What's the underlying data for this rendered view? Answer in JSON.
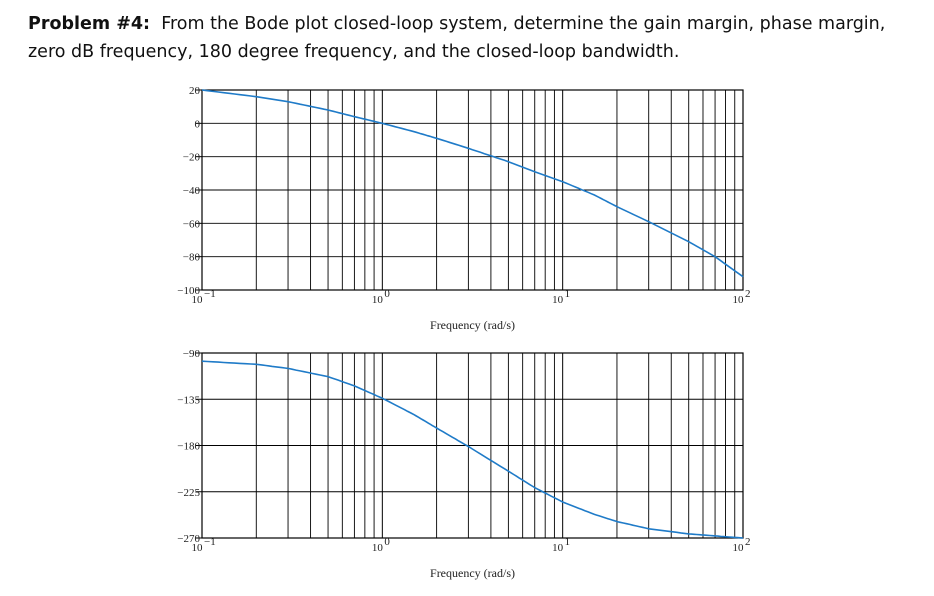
{
  "problem": {
    "label": "Problem #4:",
    "text": "From the Bode plot closed-loop system, determine the gain margin, phase margin, zero dB frequency, 180 degree frequency, and the closed-loop bandwidth."
  },
  "colors": {
    "curve": "#1f7bc8",
    "grid": "#000000"
  },
  "chart_data": [
    {
      "type": "line",
      "xscale": "log",
      "xlim": [
        0.1,
        100
      ],
      "ylim": [
        -100,
        20
      ],
      "yticks": [
        20,
        0,
        -20,
        -40,
        -60,
        -80,
        -100
      ],
      "yticklabels": [
        "20",
        "0",
        "−20",
        "−40",
        "−60",
        "−80",
        "−100"
      ],
      "xticks": [
        0.1,
        1,
        10,
        100
      ],
      "xticklabels": [
        "10",
        "10",
        "10",
        "10"
      ],
      "xtickexp": [
        "−1",
        "0",
        "1",
        "2"
      ],
      "xlabel": "Frequency (rad/s)",
      "ylabel": "",
      "grid": true,
      "series": [
        {
          "x": [
            0.1,
            0.2,
            0.3,
            0.5,
            0.7,
            1.0,
            1.5,
            2,
            3,
            5,
            7,
            10,
            15,
            20,
            30,
            50,
            70,
            100
          ],
          "y": [
            20,
            16,
            13,
            8,
            4,
            0,
            -5,
            -9,
            -15,
            -23,
            -29,
            -35,
            -43,
            -50,
            -59,
            -71,
            -80,
            -92
          ]
        }
      ]
    },
    {
      "type": "line",
      "xscale": "log",
      "xlim": [
        0.1,
        100
      ],
      "ylim": [
        -270,
        -90
      ],
      "yticks": [
        -90,
        -135,
        -180,
        -225,
        -270
      ],
      "yticklabels": [
        "−90",
        "−135",
        "−180",
        "−225",
        "−270"
      ],
      "xticks": [
        0.1,
        1,
        10,
        100
      ],
      "xticklabels": [
        "10",
        "10",
        "10",
        "10"
      ],
      "xtickexp": [
        "−1",
        "0",
        "1",
        "2"
      ],
      "xlabel": "Frequency (rad/s)",
      "ylabel": "",
      "grid": true,
      "series": [
        {
          "x": [
            0.1,
            0.2,
            0.3,
            0.5,
            0.7,
            1.0,
            1.5,
            2,
            3,
            5,
            7,
            10,
            15,
            20,
            30,
            50,
            70,
            100
          ],
          "y": [
            -98,
            -101,
            -105,
            -113,
            -122,
            -134,
            -150,
            -163,
            -181,
            -205,
            -221,
            -235,
            -247,
            -254,
            -261,
            -266,
            -268,
            -270
          ]
        }
      ]
    }
  ]
}
